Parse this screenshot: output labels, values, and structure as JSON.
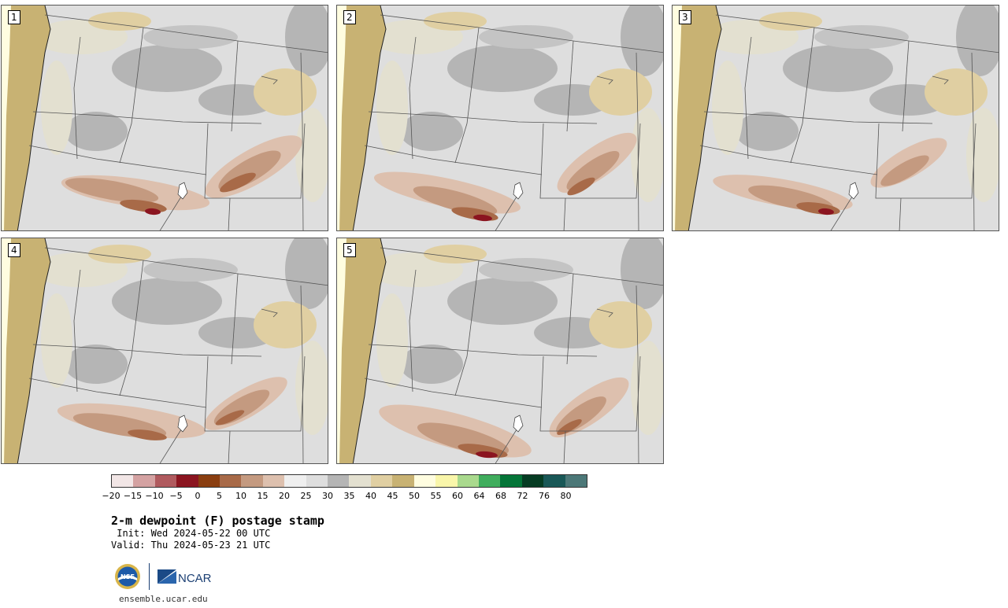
{
  "members": [
    {
      "label": "1"
    },
    {
      "label": "2"
    },
    {
      "label": "3"
    },
    {
      "label": "4"
    },
    {
      "label": "5"
    }
  ],
  "colorbar": {
    "colors": [
      "#f2e6e6",
      "#d4a2a2",
      "#b05a5e",
      "#8b1520",
      "#8a3e10",
      "#a86a48",
      "#c49a80",
      "#ddc0ae",
      "#efefef",
      "#dedede",
      "#b5b5b5",
      "#e3e0d0",
      "#e0cfa2",
      "#c8b273",
      "#fffde0",
      "#f9f6aa",
      "#a9d98d",
      "#40ad5d",
      "#047538",
      "#063c23",
      "#195857",
      "#4c7878"
    ],
    "ticks": [
      "−20",
      "−15",
      "−10",
      "−5",
      "0",
      "5",
      "10",
      "15",
      "20",
      "25",
      "30",
      "35",
      "40",
      "45",
      "50",
      "55",
      "60",
      "64",
      "68",
      "72",
      "76",
      "80"
    ]
  },
  "title": "2-m dewpoint (F) postage stamp",
  "init": " Init: Wed 2024-05-22 00 UTC",
  "valid": "Valid: Thu 2024-05-23 21 UTC",
  "site": "ensemble.ucar.edu"
}
